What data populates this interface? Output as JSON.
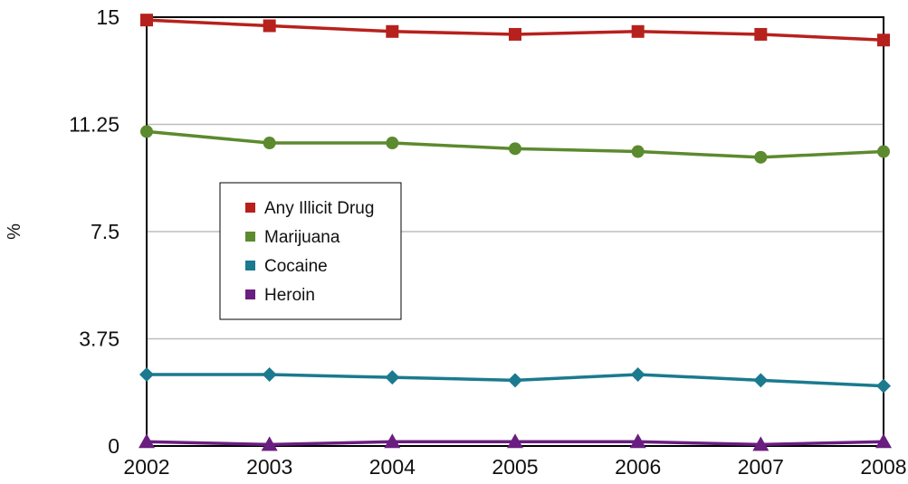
{
  "chart_data": {
    "type": "line",
    "title": "",
    "xlabel": "",
    "ylabel": "%",
    "categories": [
      "2002",
      "2003",
      "2004",
      "2005",
      "2006",
      "2007",
      "2008"
    ],
    "y_ticks": [
      "0",
      "3.75",
      "7.5",
      "11.25",
      "15"
    ],
    "ylim": [
      0,
      15
    ],
    "grid": true,
    "legend_position": "center-left",
    "series": [
      {
        "name": "Any Illicit Drug",
        "color": "#B7211D",
        "marker": "square",
        "values": [
          14.9,
          14.7,
          14.5,
          14.4,
          14.5,
          14.4,
          14.2
        ]
      },
      {
        "name": "Marijuana",
        "color": "#5C8A2E",
        "marker": "circle",
        "values": [
          11.0,
          10.6,
          10.6,
          10.4,
          10.3,
          10.1,
          10.3
        ]
      },
      {
        "name": "Cocaine",
        "color": "#1B7A8E",
        "marker": "diamond",
        "values": [
          2.5,
          2.5,
          2.4,
          2.3,
          2.5,
          2.3,
          2.1
        ]
      },
      {
        "name": "Heroin",
        "color": "#6A1E80",
        "marker": "triangle",
        "values": [
          0.15,
          0.05,
          0.15,
          0.15,
          0.15,
          0.05,
          0.15
        ]
      }
    ]
  }
}
